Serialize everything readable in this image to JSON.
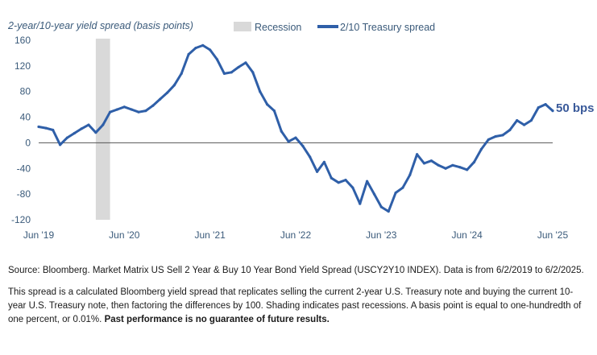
{
  "chart_data": {
    "type": "line",
    "title": "",
    "ylabel": "2-year/10-year yield spread (basis points)",
    "xlabel": "",
    "ylim": [
      -120,
      160
    ],
    "yticks": [
      160,
      120,
      80,
      40,
      0,
      -40,
      -80,
      -120
    ],
    "x_start": "2019-06",
    "x_end": "2025-06",
    "xtick_labels": [
      "Jun '19",
      "Jun '20",
      "Jun '21",
      "Jun '22",
      "Jun '23",
      "Jun '24",
      "Jun '25"
    ],
    "xtick_dates": [
      "2019-06",
      "2020-06",
      "2021-06",
      "2022-06",
      "2023-06",
      "2024-06",
      "2025-06"
    ],
    "zero_line": true,
    "grid": false,
    "legend": {
      "position": "top",
      "entries": [
        {
          "label": "Recession",
          "color": "#d9d9d9",
          "kind": "band"
        },
        {
          "label": "2/10 Treasury spread",
          "color": "#2f5fa8",
          "kind": "line"
        }
      ]
    },
    "recession": {
      "start": "2020-02",
      "end": "2020-04"
    },
    "end_label": "50 bps",
    "series": [
      {
        "name": "2/10 Treasury spread",
        "color": "#2f5fa8",
        "points": [
          [
            "2019-06",
            25
          ],
          [
            "2019-07",
            23
          ],
          [
            "2019-08",
            20
          ],
          [
            "2019-09",
            -3
          ],
          [
            "2019-10",
            8
          ],
          [
            "2019-11",
            15
          ],
          [
            "2019-12",
            22
          ],
          [
            "2020-01",
            28
          ],
          [
            "2020-02",
            16
          ],
          [
            "2020-03",
            28
          ],
          [
            "2020-04",
            48
          ],
          [
            "2020-05",
            52
          ],
          [
            "2020-06",
            56
          ],
          [
            "2020-07",
            52
          ],
          [
            "2020-08",
            48
          ],
          [
            "2020-09",
            50
          ],
          [
            "2020-10",
            58
          ],
          [
            "2020-11",
            68
          ],
          [
            "2020-12",
            78
          ],
          [
            "2021-01",
            90
          ],
          [
            "2021-02",
            108
          ],
          [
            "2021-03",
            138
          ],
          [
            "2021-04",
            148
          ],
          [
            "2021-05",
            152
          ],
          [
            "2021-06",
            145
          ],
          [
            "2021-07",
            130
          ],
          [
            "2021-08",
            108
          ],
          [
            "2021-09",
            110
          ],
          [
            "2021-10",
            118
          ],
          [
            "2021-11",
            125
          ],
          [
            "2021-12",
            110
          ],
          [
            "2022-01",
            80
          ],
          [
            "2022-02",
            60
          ],
          [
            "2022-03",
            50
          ],
          [
            "2022-04",
            18
          ],
          [
            "2022-05",
            2
          ],
          [
            "2022-06",
            8
          ],
          [
            "2022-07",
            -5
          ],
          [
            "2022-08",
            -22
          ],
          [
            "2022-09",
            -45
          ],
          [
            "2022-10",
            -30
          ],
          [
            "2022-11",
            -55
          ],
          [
            "2022-12",
            -62
          ],
          [
            "2023-01",
            -58
          ],
          [
            "2023-02",
            -70
          ],
          [
            "2023-03",
            -95
          ],
          [
            "2023-04",
            -60
          ],
          [
            "2023-05",
            -80
          ],
          [
            "2023-06",
            -100
          ],
          [
            "2023-07",
            -107
          ],
          [
            "2023-08",
            -78
          ],
          [
            "2023-09",
            -70
          ],
          [
            "2023-10",
            -50
          ],
          [
            "2023-11",
            -18
          ],
          [
            "2023-12",
            -32
          ],
          [
            "2024-01",
            -28
          ],
          [
            "2024-02",
            -35
          ],
          [
            "2024-03",
            -40
          ],
          [
            "2024-04",
            -35
          ],
          [
            "2024-05",
            -38
          ],
          [
            "2024-06",
            -42
          ],
          [
            "2024-07",
            -30
          ],
          [
            "2024-08",
            -10
          ],
          [
            "2024-09",
            5
          ],
          [
            "2024-10",
            10
          ],
          [
            "2024-11",
            12
          ],
          [
            "2024-12",
            20
          ],
          [
            "2025-01",
            35
          ],
          [
            "2025-02",
            28
          ],
          [
            "2025-03",
            35
          ],
          [
            "2025-04",
            55
          ],
          [
            "2025-05",
            60
          ],
          [
            "2025-06",
            50
          ]
        ]
      }
    ]
  },
  "notes": {
    "source": "Source: Bloomberg. Market Matrix US Sell 2 Year & Buy 10 Year Bond Yield Spread (USCY2Y10 INDEX). Data is from 6/2/2019 to 6/2/2025.",
    "description": "This spread is a calculated Bloomberg yield spread that replicates selling the current 2-year U.S. Treasury note and buying the current 10-year U.S. Treasury note, then factoring the differences by 100. Shading indicates past recessions. A basis point is equal to one-hundredth of one percent, or 0.01%.",
    "disclaimer": "Past performance is no guarantee of future results."
  }
}
